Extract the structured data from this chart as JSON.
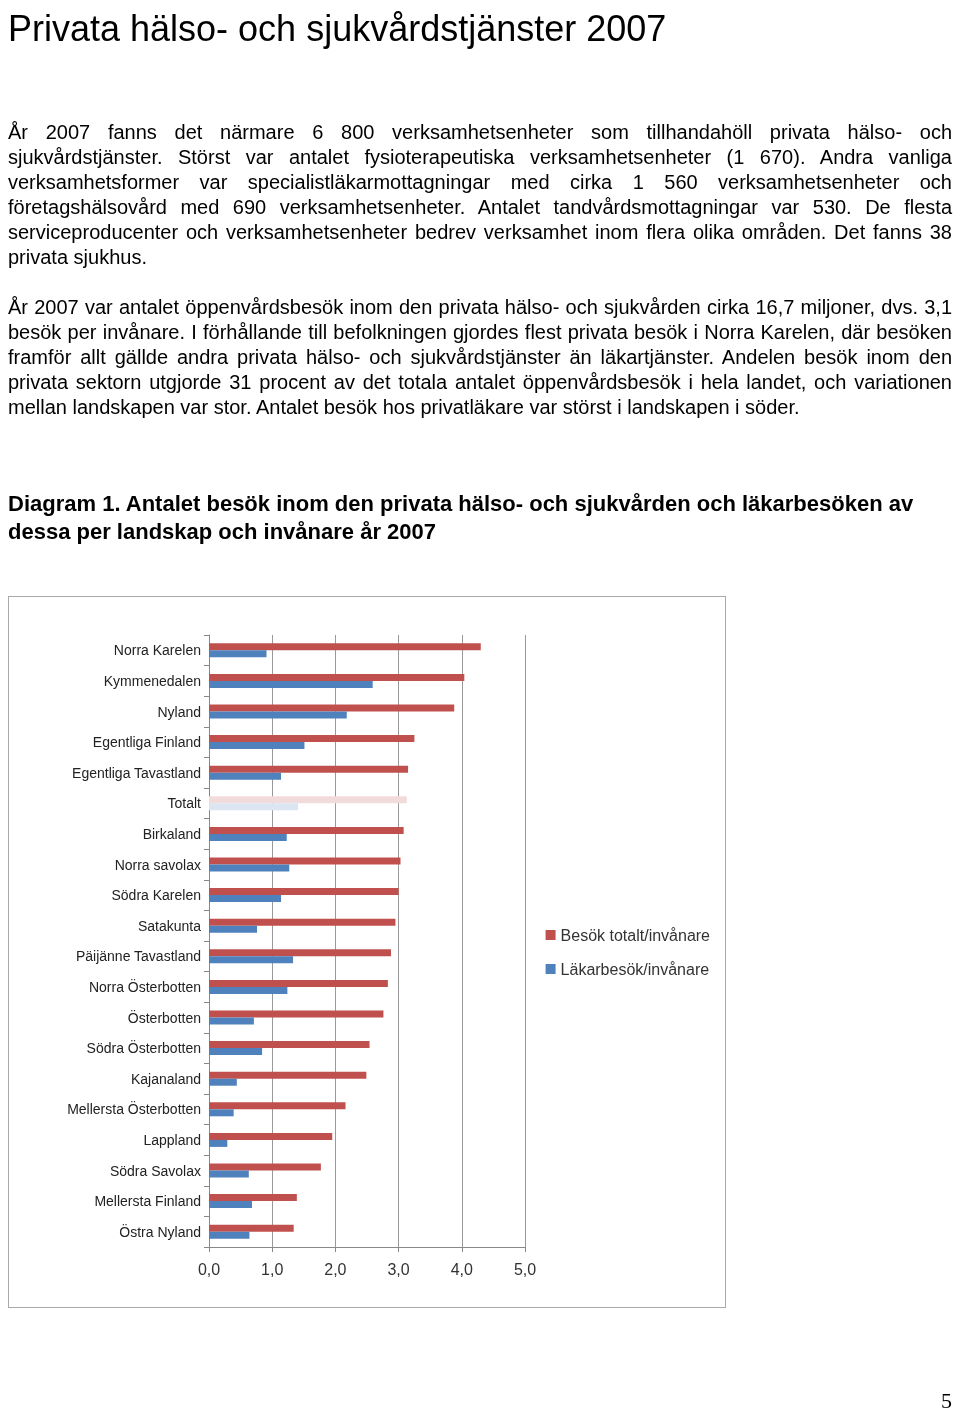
{
  "chart_data": {
    "type": "bar",
    "orientation": "horizontal",
    "title": "Privata hälso- och sjukvårdstjänster 2007",
    "subtitle": "Diagram 1. Antalet besök inom den privata hälso- och sjukvården och läkarbesöken av dessa per landskap och invånare år 2007",
    "annotations": [
      "År 2007 fanns det närmare 6 800 verksamhetsenheter som tillhandahöll privata hälso- och sjukvårdstjänster. Störst var antalet fysioterapeutiska verksamhetsenheter (1 670). Andra vanliga verksamhetsformer var specialistläkarmottagningar med cirka 1 560 verksamhetsenheter och företagshälsovård med 690 verksamhetsenheter. Antalet tandvårdsmottagningar var 530. De flesta serviceproducenter och verksamhetsenheter bedrev verksamhet inom flera olika områden. Det fanns 38 privata sjukhus.",
      "År 2007 var antalet öppenvårdsbesök inom den privata hälso- och sjukvården cirka 16,7 miljoner, dvs. 3,1 besök per invånare. I förhållande till befolkningen gjordes flest privata besök i Norra Karelen, där besöken framför allt gällde andra privata hälso- och sjukvårdstjänster än läkartjänster. Andelen besök inom den privata sektorn utgjorde 31 procent av det totala antalet öppenvårdsbesök i hela landet, och variationen mellan landskapen var stor. Antalet besök hos privatläkare var störst i landskapen i söder.",
      "5"
    ],
    "categories": [
      "Norra Karelen",
      "Kymmenedalen",
      "Nyland",
      "Egentliga Finland",
      "Egentliga Tavastland",
      "Totalt",
      "Birkaland",
      "Norra savolax",
      "Södra Karelen",
      "Satakunta",
      "Päijänne Tavastland",
      "Norra Österbotten",
      "Österbotten",
      "Södra Österbotten",
      "Kajanaland",
      "Mellersta Österbotten",
      "Lappland",
      "Södra Savolax",
      "Mellersta Finland",
      "Östra Nyland"
    ],
    "series": [
      {
        "name": "Besök totalt/invånare",
        "color": "#c0504d",
        "colors": [
          "#c0504d",
          "#c0504d",
          "#c0504d",
          "#c0504d",
          "#c0504d",
          "#f2dcdb",
          "#c0504d",
          "#c0504d",
          "#c0504d",
          "#c0504d",
          "#c0504d",
          "#c0504d",
          "#c0504d",
          "#c0504d",
          "#c0504d",
          "#c0504d",
          "#c0504d",
          "#c0504d",
          "#c0504d",
          "#c0504d"
        ],
        "values": [
          4.3,
          4.04,
          3.88,
          3.25,
          3.15,
          3.13,
          3.08,
          3.03,
          3.0,
          2.95,
          2.88,
          2.83,
          2.76,
          2.54,
          2.49,
          2.16,
          1.95,
          1.77,
          1.39,
          1.34
        ]
      },
      {
        "name": "Läkarbesök/invånare",
        "color": "#4f81bd",
        "colors": [
          "#4f81bd",
          "#4f81bd",
          "#4f81bd",
          "#4f81bd",
          "#4f81bd",
          "#dce6f2",
          "#4f81bd",
          "#4f81bd",
          "#4f81bd",
          "#4f81bd",
          "#4f81bd",
          "#4f81bd",
          "#4f81bd",
          "#4f81bd",
          "#4f81bd",
          "#4f81bd",
          "#4f81bd",
          "#4f81bd",
          "#4f81bd",
          "#4f81bd"
        ],
        "values": [
          0.91,
          2.59,
          2.18,
          1.51,
          1.14,
          1.41,
          1.23,
          1.27,
          1.14,
          0.76,
          1.33,
          1.24,
          0.71,
          0.84,
          0.44,
          0.39,
          0.29,
          0.63,
          0.68,
          0.64
        ]
      }
    ],
    "xlim": [
      0,
      5
    ],
    "xticks": [
      {
        "value": 0,
        "label": "0,0"
      },
      {
        "value": 1,
        "label": "1,0"
      },
      {
        "value": 2,
        "label": "2,0"
      },
      {
        "value": 3,
        "label": "3,0"
      },
      {
        "value": 4,
        "label": "4,0"
      },
      {
        "value": 5,
        "label": "5,0"
      }
    ],
    "grid": "x",
    "legend": "right"
  }
}
